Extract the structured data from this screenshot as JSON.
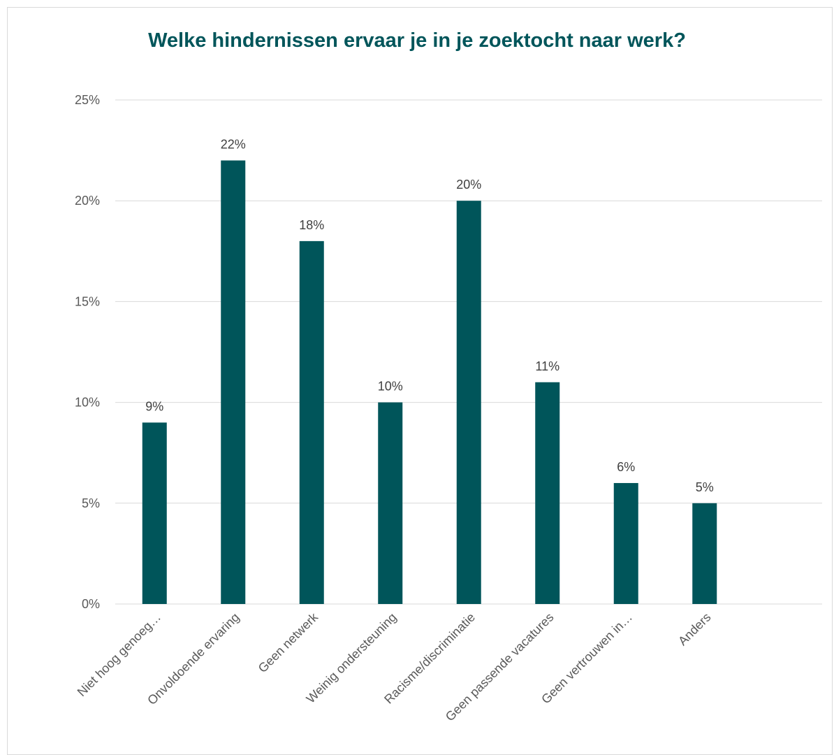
{
  "chart_data": {
    "type": "bar",
    "title": "Welke hindernissen ervaar je in je zoektocht naar werk?",
    "categories": [
      "Niet hoog genoeg…",
      "Onvoldoende ervaring",
      "Geen netwerk",
      "Weinig ondersteuning",
      "Racisme/discriminatie",
      "Geen passende vacatures",
      "Geen vertrouwen in…",
      "Anders"
    ],
    "values": [
      9,
      22,
      18,
      10,
      20,
      11,
      6,
      5
    ],
    "value_labels": [
      "9%",
      "22%",
      "18%",
      "10%",
      "20%",
      "11%",
      "6%",
      "5%"
    ],
    "ylim": [
      0,
      25
    ],
    "yticks": [
      0,
      5,
      10,
      15,
      20,
      25
    ],
    "ytick_labels": [
      "0%",
      "5%",
      "10%",
      "15%",
      "20%",
      "25%"
    ],
    "xlabel": "",
    "ylabel": "",
    "grid": true,
    "legend": "none",
    "bar_color": "#00555a",
    "title_color": "#00555a"
  }
}
